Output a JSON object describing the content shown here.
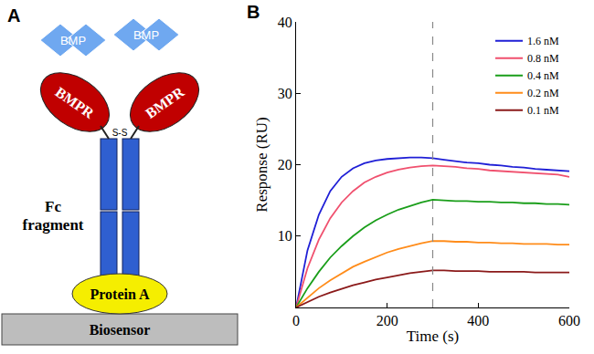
{
  "diagram": {
    "panel_label": "A",
    "ligands": [
      "BMP",
      "BMP"
    ],
    "receptors": [
      "BMPR",
      "BMPR"
    ],
    "disulfide": "S-S",
    "fc": "Fc fragment",
    "protein": "Protein A",
    "surface": "Biosensor"
  },
  "chart_data": {
    "type": "line",
    "panel_label": "B",
    "x_label": "Time (s)",
    "y_label": "Response (RU)",
    "x": [
      0,
      25,
      50,
      75,
      100,
      125,
      150,
      175,
      200,
      225,
      250,
      275,
      300,
      325,
      350,
      375,
      400,
      425,
      450,
      475,
      500,
      525,
      550,
      575,
      600
    ],
    "series": [
      {
        "name": "1.6 nM",
        "color": "#1f1fd6",
        "values": [
          0,
          8,
          13,
          16.3,
          18.3,
          19.5,
          20.2,
          20.6,
          20.8,
          20.9,
          21,
          21,
          20.9,
          20.7,
          20.5,
          20.3,
          20.2,
          20.0,
          19.9,
          19.7,
          19.6,
          19.4,
          19.3,
          19.2,
          19.1
        ]
      },
      {
        "name": "0.8 nM",
        "color": "#f0506e",
        "values": [
          0,
          5.5,
          9.5,
          12.5,
          14.7,
          16.3,
          17.5,
          18.3,
          18.9,
          19.3,
          19.6,
          19.8,
          19.9,
          19.8,
          19.7,
          19.5,
          19.4,
          19.2,
          19.1,
          19.0,
          18.9,
          18.8,
          18.7,
          18.6,
          18.3
        ]
      },
      {
        "name": "0.4 nM",
        "color": "#1a9e1a",
        "values": [
          0,
          2.7,
          5,
          7,
          8.6,
          10,
          11.2,
          12.2,
          13,
          13.7,
          14.2,
          14.7,
          15.1,
          15.0,
          14.9,
          14.9,
          14.8,
          14.8,
          14.7,
          14.7,
          14.6,
          14.6,
          14.5,
          14.5,
          14.4
        ]
      },
      {
        "name": "0.2 nM",
        "color": "#ff8c1a",
        "values": [
          0,
          1.4,
          2.7,
          3.8,
          4.8,
          5.7,
          6.4,
          7.1,
          7.7,
          8.2,
          8.6,
          9.0,
          9.3,
          9.3,
          9.2,
          9.2,
          9.1,
          9.1,
          9.0,
          9.0,
          8.9,
          8.9,
          8.9,
          8.8,
          8.8
        ]
      },
      {
        "name": "0.1 nM",
        "color": "#8b1a1a",
        "values": [
          0,
          0.8,
          1.5,
          2.1,
          2.6,
          3.1,
          3.5,
          3.9,
          4.2,
          4.5,
          4.8,
          5.0,
          5.2,
          5.2,
          5.1,
          5.1,
          5.1,
          5.0,
          5.0,
          5.0,
          5.0,
          4.9,
          4.9,
          4.9,
          4.9
        ]
      }
    ],
    "vline": 300,
    "xlim": [
      0,
      600
    ],
    "xticks": [
      0,
      200,
      400,
      600
    ],
    "ylim": [
      0,
      40
    ],
    "yticks": [
      10,
      20,
      30,
      40
    ],
    "grid": false,
    "legend": "top right"
  }
}
